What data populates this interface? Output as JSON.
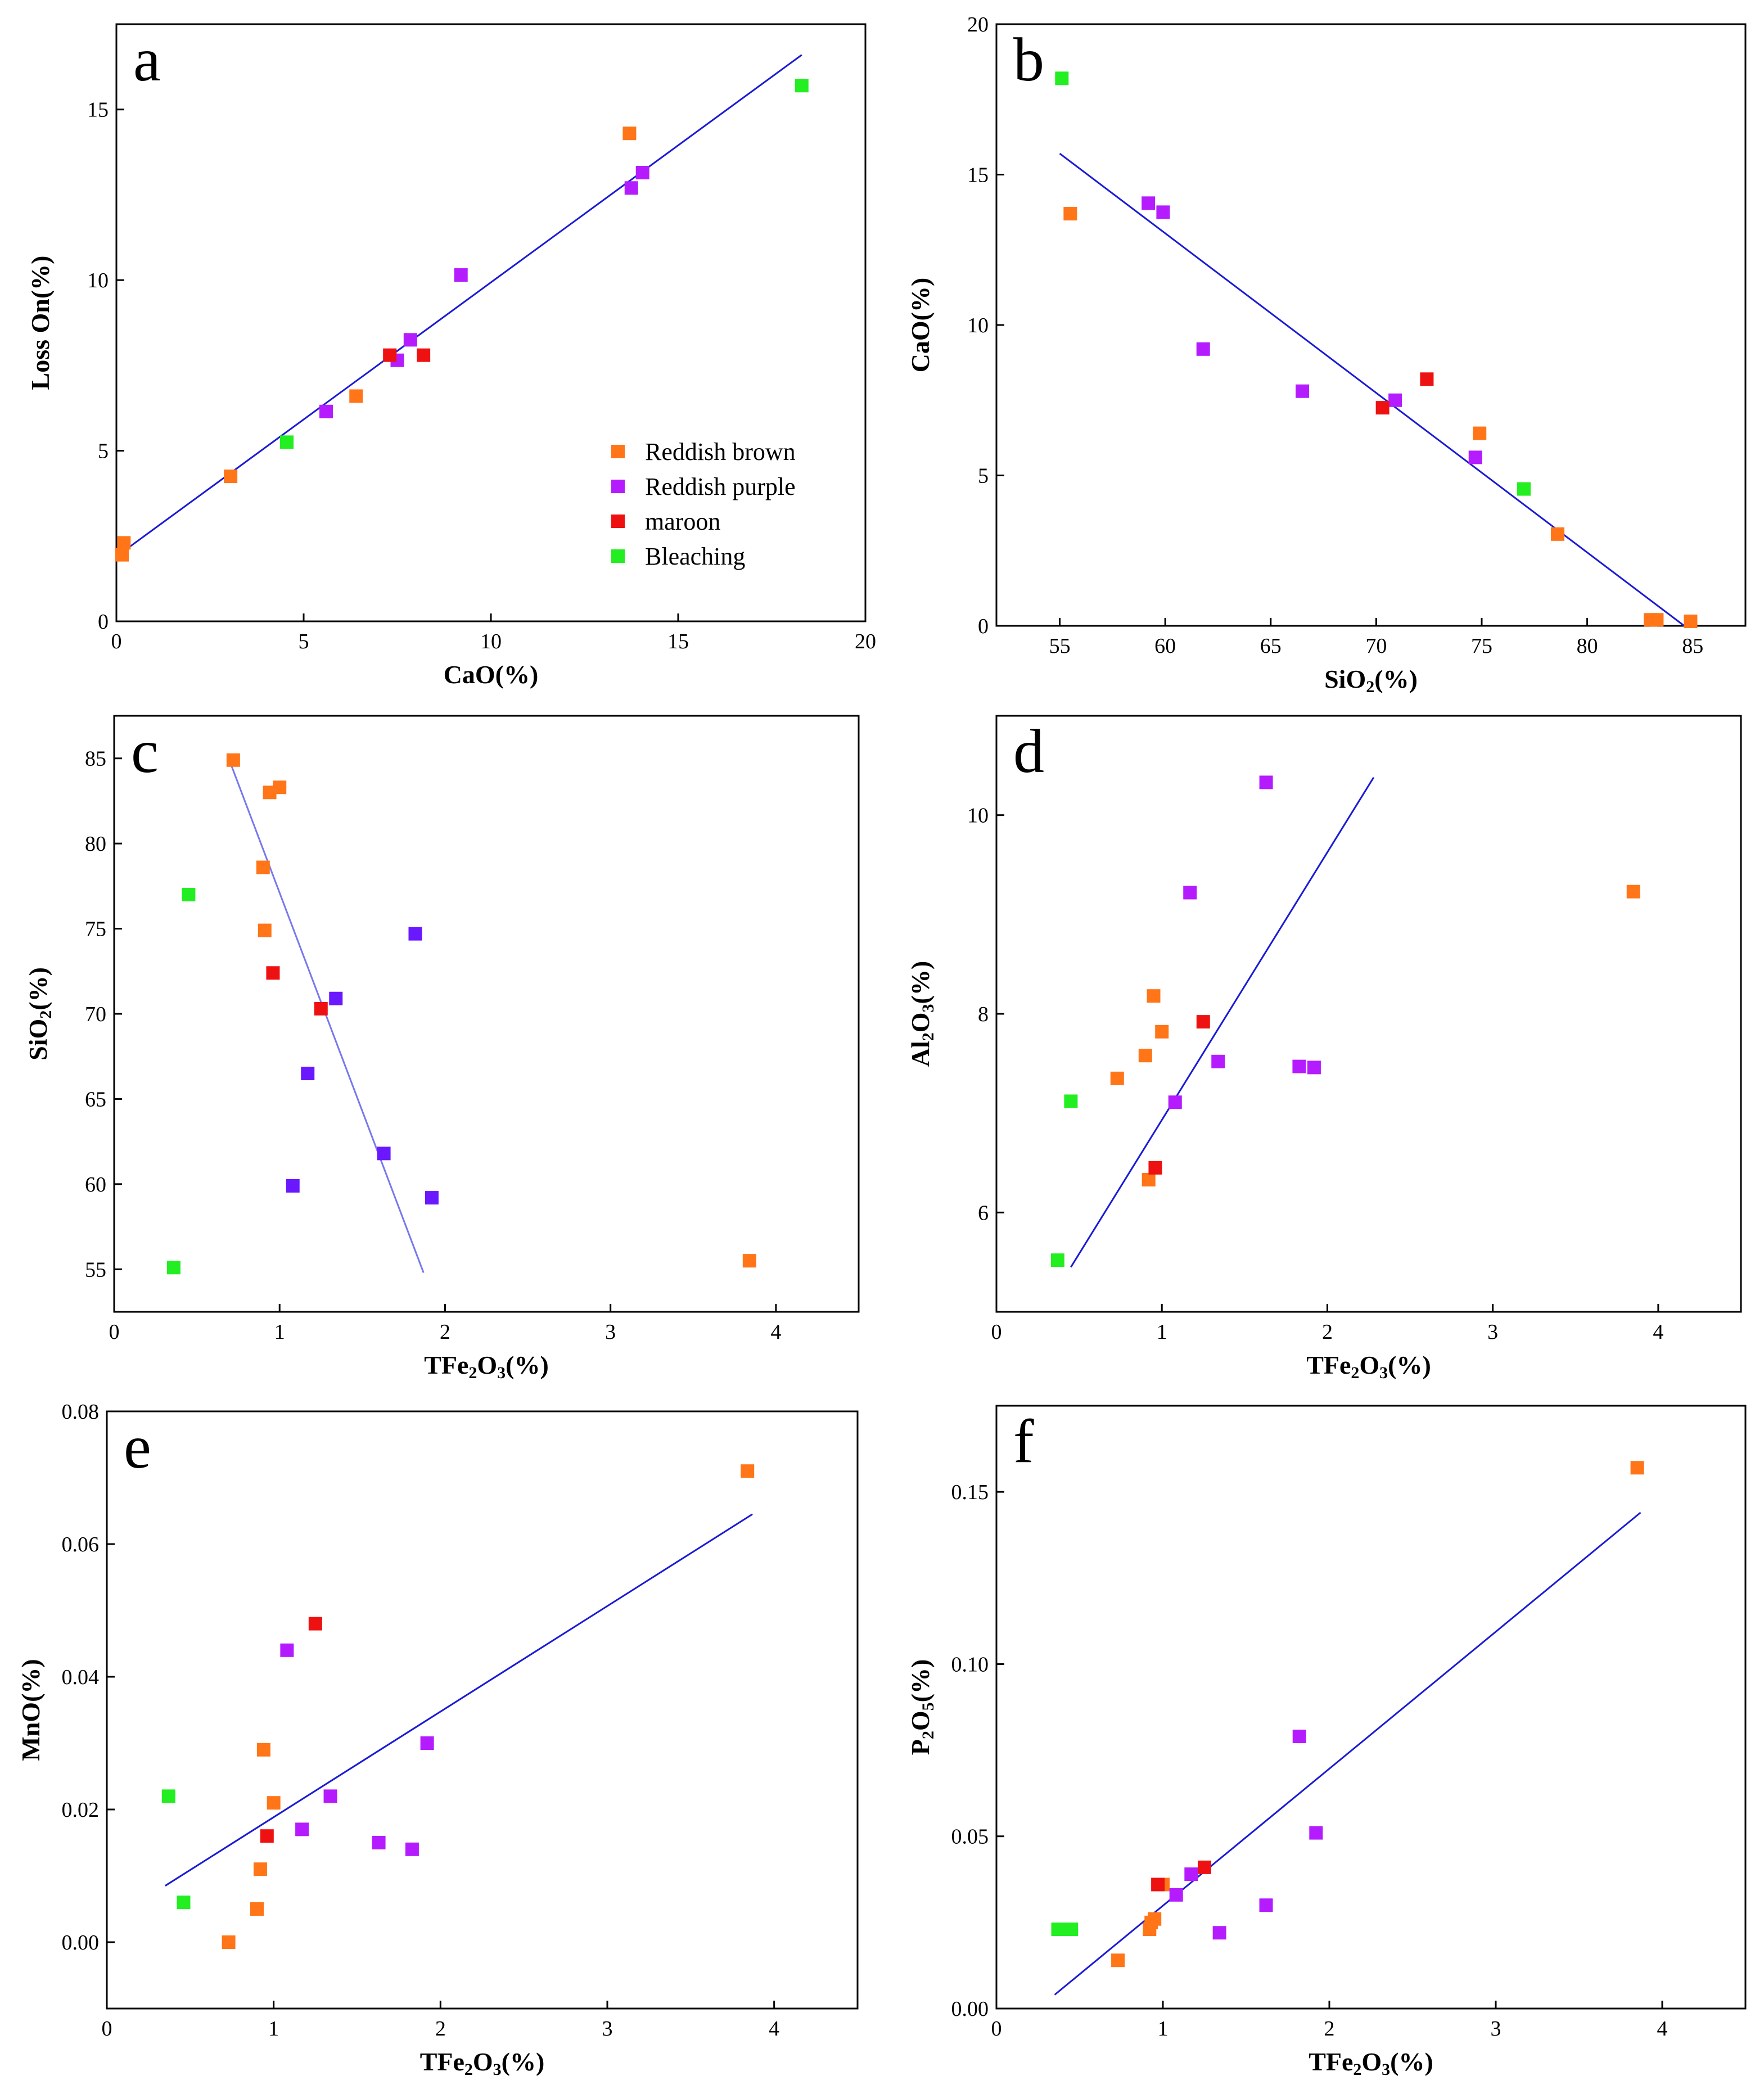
{
  "colors": {
    "reddish_brown": "#ff7518",
    "reddish_purple": "#b41cff",
    "maroon": "#ee1111",
    "bleaching": "#22ee22",
    "violet_blue": "#6a18ff",
    "fit_line": "#1a1ad6",
    "fit_line_light": "#7878ee"
  },
  "legend": {
    "entries": [
      {
        "label": "Reddish brown",
        "color": "#ff7518"
      },
      {
        "label": "Reddish purple",
        "color": "#b41cff"
      },
      {
        "label": "maroon",
        "color": "#ee1111"
      },
      {
        "label": "Bleaching",
        "color": "#22ee22"
      }
    ]
  },
  "chart_data": [
    {
      "panel": "a",
      "type": "scatter",
      "xlabel": "CaO(%)",
      "ylabel": "Loss On(%)",
      "xlim": [
        0,
        20
      ],
      "ylim": [
        0,
        17.5
      ],
      "xticks": [
        0,
        5,
        10,
        15,
        20
      ],
      "yticks": [
        0,
        5,
        10,
        15
      ],
      "tick_decimals": 0,
      "legend_position": "lower-right",
      "fit_line": {
        "from": [
          0,
          1.9
        ],
        "to": [
          18.3,
          16.6
        ],
        "style": "dark"
      },
      "series": [
        {
          "name": "Reddish brown",
          "color": "#ff7518",
          "points": [
            [
              0.2,
              2.3
            ],
            [
              0.15,
              1.95
            ],
            [
              3.05,
              4.25
            ],
            [
              6.4,
              6.6
            ],
            [
              13.7,
              14.3
            ]
          ]
        },
        {
          "name": "Reddish purple",
          "color": "#b41cff",
          "points": [
            [
              5.6,
              6.15
            ],
            [
              7.5,
              7.65
            ],
            [
              7.85,
              8.25
            ],
            [
              9.2,
              10.15
            ],
            [
              13.75,
              12.7
            ],
            [
              14.05,
              13.15
            ]
          ]
        },
        {
          "name": "maroon",
          "color": "#ee1111",
          "points": [
            [
              7.3,
              7.8
            ],
            [
              8.2,
              7.8
            ]
          ]
        },
        {
          "name": "Bleaching",
          "color": "#22ee22",
          "points": [
            [
              4.55,
              5.25
            ],
            [
              18.3,
              15.7
            ]
          ]
        }
      ]
    },
    {
      "panel": "b",
      "type": "scatter",
      "xlabel": "SiO2(%)",
      "ylabel": "CaO(%)",
      "xlim": [
        52,
        87.5
      ],
      "ylim": [
        0,
        20
      ],
      "xticks": [
        55,
        60,
        65,
        70,
        75,
        80,
        85
      ],
      "yticks": [
        0,
        5,
        10,
        15,
        20
      ],
      "tick_decimals": 0,
      "fit_line": {
        "from": [
          55,
          15.7
        ],
        "to": [
          84.6,
          0
        ],
        "style": "dark"
      },
      "series": [
        {
          "name": "Reddish brown",
          "color": "#ff7518",
          "points": [
            [
              55.5,
              13.7
            ],
            [
              74.9,
              6.4
            ],
            [
              78.6,
              3.05
            ],
            [
              83.0,
              0.2
            ],
            [
              83.3,
              0.2
            ],
            [
              84.9,
              0.15
            ]
          ]
        },
        {
          "name": "Reddish purple",
          "color": "#b41cff",
          "points": [
            [
              59.2,
              14.05
            ],
            [
              59.9,
              13.75
            ],
            [
              61.8,
              9.2
            ],
            [
              66.5,
              7.8
            ],
            [
              70.9,
              7.5
            ],
            [
              74.7,
              5.6
            ]
          ]
        },
        {
          "name": "maroon",
          "color": "#ee1111",
          "points": [
            [
              70.3,
              7.25
            ],
            [
              72.4,
              8.2
            ]
          ]
        },
        {
          "name": "Bleaching",
          "color": "#22ee22",
          "points": [
            [
              55.1,
              18.2
            ],
            [
              77.0,
              4.55
            ]
          ]
        }
      ]
    },
    {
      "panel": "c",
      "type": "scatter",
      "xlabel": "TFe2O3(%)",
      "ylabel": "SiO2(%)",
      "xlim": [
        0,
        4.5
      ],
      "ylim": [
        52.5,
        87.5
      ],
      "xticks": [
        0,
        1,
        2,
        3,
        4
      ],
      "yticks": [
        55,
        60,
        65,
        70,
        75,
        80,
        85
      ],
      "tick_decimals": 0,
      "fit_line": {
        "from": [
          0.7,
          84.8
        ],
        "to": [
          1.87,
          54.8
        ],
        "style": "light"
      },
      "series": [
        {
          "name": "Reddish brown",
          "color": "#ff7518",
          "points": [
            [
              0.72,
              84.9
            ],
            [
              0.94,
              83.0
            ],
            [
              1.0,
              83.3
            ],
            [
              0.9,
              78.6
            ],
            [
              0.91,
              74.9
            ],
            [
              3.84,
              55.5
            ]
          ]
        },
        {
          "name": "Reddish purple",
          "color": "#6a18ff",
          "points": [
            [
              1.82,
              74.7
            ],
            [
              1.34,
              70.9
            ],
            [
              1.17,
              66.5
            ],
            [
              1.63,
              61.8
            ],
            [
              1.08,
              59.9
            ],
            [
              1.92,
              59.2
            ]
          ]
        },
        {
          "name": "maroon",
          "color": "#ee1111",
          "points": [
            [
              0.96,
              72.4
            ],
            [
              1.25,
              70.3
            ]
          ]
        },
        {
          "name": "Bleaching",
          "color": "#22ee22",
          "points": [
            [
              0.45,
              77.0
            ],
            [
              0.36,
              55.1
            ]
          ]
        }
      ]
    },
    {
      "panel": "d",
      "type": "scatter",
      "xlabel": "TFe2O3(%)",
      "ylabel": "Al2O3(%)",
      "xlim": [
        0,
        4.5
      ],
      "ylim": [
        5,
        11
      ],
      "xticks": [
        0,
        1,
        2,
        3,
        4
      ],
      "yticks": [
        6,
        8,
        10
      ],
      "tick_decimals": 0,
      "fit_line": {
        "from": [
          0.45,
          5.45
        ],
        "to": [
          2.28,
          10.38
        ],
        "style": "dark"
      },
      "series": [
        {
          "name": "Reddish brown",
          "color": "#ff7518",
          "points": [
            [
              0.95,
              8.18
            ],
            [
              1.0,
              7.82
            ],
            [
              0.9,
              7.58
            ],
            [
              0.73,
              7.35
            ],
            [
              0.92,
              6.33
            ],
            [
              3.85,
              9.23
            ]
          ]
        },
        {
          "name": "Reddish purple",
          "color": "#b41cff",
          "points": [
            [
              1.63,
              10.33
            ],
            [
              1.17,
              9.22
            ],
            [
              1.34,
              7.52
            ],
            [
              1.83,
              7.47
            ],
            [
              1.92,
              7.46
            ],
            [
              1.08,
              7.11
            ]
          ]
        },
        {
          "name": "maroon",
          "color": "#ee1111",
          "points": [
            [
              1.25,
              7.92
            ],
            [
              0.96,
              6.45
            ]
          ]
        },
        {
          "name": "Bleaching",
          "color": "#22ee22",
          "points": [
            [
              0.45,
              7.12
            ],
            [
              0.37,
              5.52
            ]
          ]
        }
      ]
    },
    {
      "panel": "e",
      "type": "scatter",
      "xlabel": "TFe2O3(%)",
      "ylabel": "MnO(%)",
      "xlim": [
        0,
        4.5
      ],
      "ylim": [
        -0.01,
        0.08
      ],
      "xticks": [
        0,
        1,
        2,
        3,
        4
      ],
      "yticks": [
        0.0,
        0.02,
        0.04,
        0.06,
        0.08
      ],
      "tick_decimals": 2,
      "fit_line": {
        "from": [
          0.35,
          0.0085
        ],
        "to": [
          3.87,
          0.0645
        ],
        "style": "dark"
      },
      "series": [
        {
          "name": "Reddish brown",
          "color": "#ff7518",
          "points": [
            [
              3.84,
              0.071
            ],
            [
              0.94,
              0.029
            ],
            [
              1.0,
              0.021
            ],
            [
              0.92,
              0.011
            ],
            [
              0.9,
              0.005
            ],
            [
              0.73,
              0.0
            ]
          ]
        },
        {
          "name": "Reddish purple",
          "color": "#b41cff",
          "points": [
            [
              1.08,
              0.044
            ],
            [
              1.92,
              0.03
            ],
            [
              1.34,
              0.022
            ],
            [
              1.17,
              0.017
            ],
            [
              1.63,
              0.015
            ],
            [
              1.83,
              0.014
            ]
          ]
        },
        {
          "name": "maroon",
          "color": "#ee1111",
          "points": [
            [
              1.25,
              0.048
            ],
            [
              0.96,
              0.016
            ]
          ]
        },
        {
          "name": "Bleaching",
          "color": "#22ee22",
          "points": [
            [
              0.37,
              0.022
            ],
            [
              0.46,
              0.006
            ]
          ]
        }
      ]
    },
    {
      "panel": "f",
      "type": "scatter",
      "xlabel": "TFe2O3(%)",
      "ylabel": "P2O5(%)",
      "xlim": [
        0,
        4.5
      ],
      "ylim": [
        0,
        0.175
      ],
      "xticks": [
        0,
        1,
        2,
        3,
        4
      ],
      "yticks": [
        0.0,
        0.05,
        0.1,
        0.15
      ],
      "tick_decimals": 2,
      "fit_line": {
        "from": [
          0.35,
          0.004
        ],
        "to": [
          3.87,
          0.144
        ],
        "style": "dark"
      },
      "series": [
        {
          "name": "Reddish brown",
          "color": "#ff7518",
          "points": [
            [
              3.85,
              0.157
            ],
            [
              1.0,
              0.036
            ],
            [
              0.93,
              0.025
            ],
            [
              0.95,
              0.026
            ],
            [
              0.92,
              0.023
            ],
            [
              0.73,
              0.014
            ]
          ]
        },
        {
          "name": "Reddish purple",
          "color": "#b41cff",
          "points": [
            [
              1.82,
              0.079
            ],
            [
              1.92,
              0.051
            ],
            [
              1.17,
              0.039
            ],
            [
              1.08,
              0.033
            ],
            [
              1.62,
              0.03
            ],
            [
              1.34,
              0.022
            ]
          ]
        },
        {
          "name": "maroon",
          "color": "#ee1111",
          "points": [
            [
              0.97,
              0.036
            ],
            [
              1.25,
              0.041
            ]
          ]
        },
        {
          "name": "Bleaching",
          "color": "#22ee22",
          "points": [
            [
              0.37,
              0.023
            ],
            [
              0.45,
              0.023
            ]
          ]
        }
      ]
    }
  ]
}
